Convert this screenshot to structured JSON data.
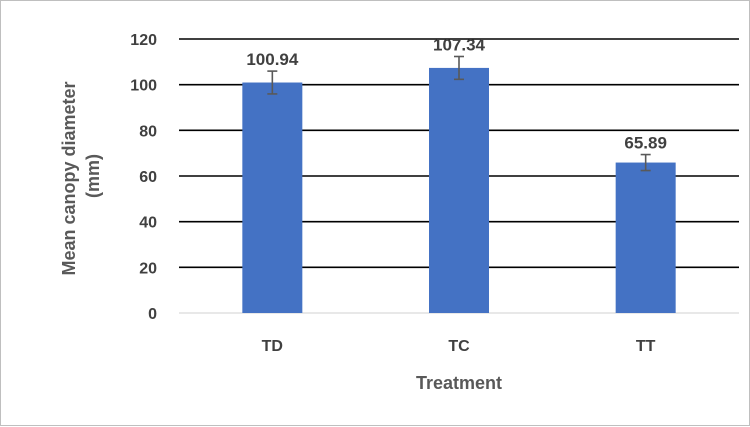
{
  "chart_data": {
    "type": "bar",
    "title": "",
    "xlabel": "Treatment",
    "ylabel_lines": [
      "Mean canopy diameter",
      "(mm)"
    ],
    "categories": [
      "TD",
      "TC",
      "TT"
    ],
    "values": [
      100.94,
      107.34,
      65.89
    ],
    "value_labels": [
      "100.94",
      "107.34",
      "65.89"
    ],
    "error": [
      5,
      5,
      3.5
    ],
    "ylim": [
      0,
      120
    ],
    "yticks": [
      0,
      20,
      40,
      60,
      80,
      100,
      120
    ],
    "grid": true,
    "legend": "none",
    "bar_color": "#4472C4",
    "error_color": "#595959",
    "grid_color": "#000000"
  }
}
